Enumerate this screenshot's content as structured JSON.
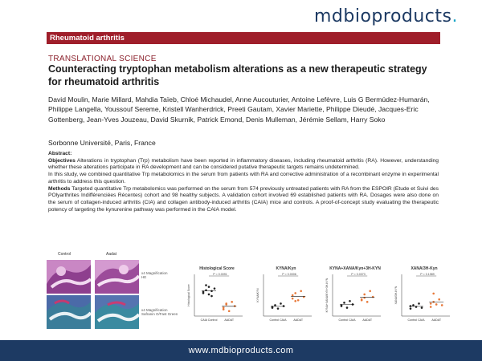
{
  "brand": {
    "prefix": "mdbioproducts",
    "suffix": "."
  },
  "banner": {
    "label": "Rheumatoid arthritis"
  },
  "section_tag": "TRANSLATIONAL SCIENCE",
  "title": "Counteracting tryptophan metabolism alterations as a new therapeutic strategy for rheumatoid arthritis",
  "authors": "David Moulin, Marie Millard,  Mahdia Taïeb, Chloé Michaudel, Anne Aucouturier, Antoine Lefèvre, Luis G Bermúdez-Humarán, Philippe Langella, Youssouf Sereme, Kristell Wanherdrick, Preeti Gautam,  Xavier Mariette, Philippe Dieudé, Jacques-Eric Gottenberg, Jean-Yves Jouzeau, David Skurnik, Patrick Emond, Denis Mulleman, Jérémie Sellam, Harry Soko",
  "affiliation": "Sorbonne Université, Paris, France",
  "abstract": {
    "heading": "Abstract:",
    "objectives_label": "Objectives",
    "objectives_text": " Alterations in tryptophan (Trp) metabolism have been reported in inflammatory diseases, including rheumatoid arthritis (RA). However, understanding whether these alterations participate in RA development and can be considered putative therapeutic targets remains undetermined.",
    "objectives_text2": "In this study, we combined quantitative Trp metabolomics in the serum from patients with RA and corrective administration of a recombinant enzyme in experimental arthritis to address this question.",
    "methods_label": "Methods",
    "methods_text": " Targeted quantitative Trp metabolomics was performed on the serum from 574 previously untreated patients with RA from the ESPOIR (Etude et Suivi des POlyarthrites Indifférenciées Récentes) cohort and 98 healthy subjects. A validation cohort involved 69 established patients with RA. Dosages were also done on the serum of collagen-induced arthritis (CIA) and collagen antibody-induced arthritis (CAIA) mice and controls. A proof-of-concept study evaluating the therapeutic potency of targeting the kynurenine pathway was performed in the CAIA model."
  },
  "figure": {
    "histo_labels": [
      "Control",
      "Aadat"
    ],
    "histo_captions": [
      "x4 Magnification\nHE",
      "x4 Magnification\nSafranin O/Fast Green"
    ],
    "panels": [
      {
        "title": "Histological Score",
        "ylabel": "Histological Score",
        "pval": "P = 0.0091",
        "xcats": [
          "CAIA Control",
          "AADAT"
        ]
      },
      {
        "title": "KYNA/Kyn",
        "ylabel": "KYNA/KYN",
        "pval": "P = 0.0006",
        "xcats": [
          "Control CAIA",
          "AADAT"
        ]
      },
      {
        "title": "KYNA+XANA/Kyn+3H-KYN",
        "ylabel": "KYNA+XANA/KYN+3H-KYN",
        "pval": "P = 0.0373",
        "xcats": [
          "Control CAIA",
          "AADAT"
        ]
      },
      {
        "title": "XANA/3H-Kyn",
        "ylabel": "XANA/3H-KYN",
        "pval": "P = 0.1989",
        "xcats": [
          "Control CAIA",
          "AADAT"
        ]
      }
    ],
    "colors": {
      "control": "#222222",
      "treated": "#e8793a"
    }
  },
  "footer": {
    "url": "www.mdbioproducts.com"
  }
}
